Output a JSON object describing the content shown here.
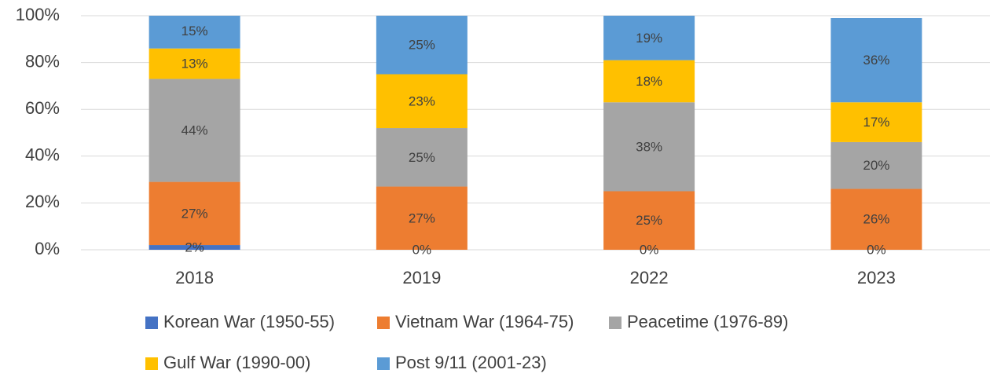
{
  "chart_data": {
    "type": "bar",
    "stacked": true,
    "categories": [
      "2018",
      "2019",
      "2022",
      "2023"
    ],
    "series": [
      {
        "name": "Korean War (1950-55)",
        "color": "#4472c4",
        "values": [
          2,
          0,
          0,
          0
        ],
        "value_labels": [
          "2%",
          "0%",
          "0%",
          "0%"
        ]
      },
      {
        "name": "Vietnam War (1964-75)",
        "color": "#ed7d31",
        "values": [
          27,
          27,
          25,
          26
        ],
        "value_labels": [
          "27%",
          "27%",
          "25%",
          "26%"
        ]
      },
      {
        "name": "Peacetime (1976-89)",
        "color": "#a5a5a5",
        "values": [
          44,
          25,
          38,
          20
        ],
        "value_labels": [
          "44%",
          "25%",
          "38%",
          "20%"
        ]
      },
      {
        "name": "Gulf War (1990-00)",
        "color": "#ffc000",
        "values": [
          13,
          23,
          18,
          17
        ],
        "value_labels": [
          "13%",
          "23%",
          "18%",
          "17%"
        ]
      },
      {
        "name": "Post 9/11 (2001-23)",
        "color": "#5b9bd5",
        "values": [
          15,
          25,
          19,
          36
        ],
        "value_labels": [
          "15%",
          "25%",
          "19%",
          "36%"
        ]
      }
    ],
    "ylim": [
      0,
      100
    ],
    "yticks": [
      {
        "value": 0,
        "label": "0%"
      },
      {
        "value": 20,
        "label": "20%"
      },
      {
        "value": 40,
        "label": "40%"
      },
      {
        "value": 60,
        "label": "60%"
      },
      {
        "value": 80,
        "label": "80%"
      },
      {
        "value": 100,
        "label": "100%"
      }
    ],
    "grid": true,
    "legend": "bottom"
  }
}
